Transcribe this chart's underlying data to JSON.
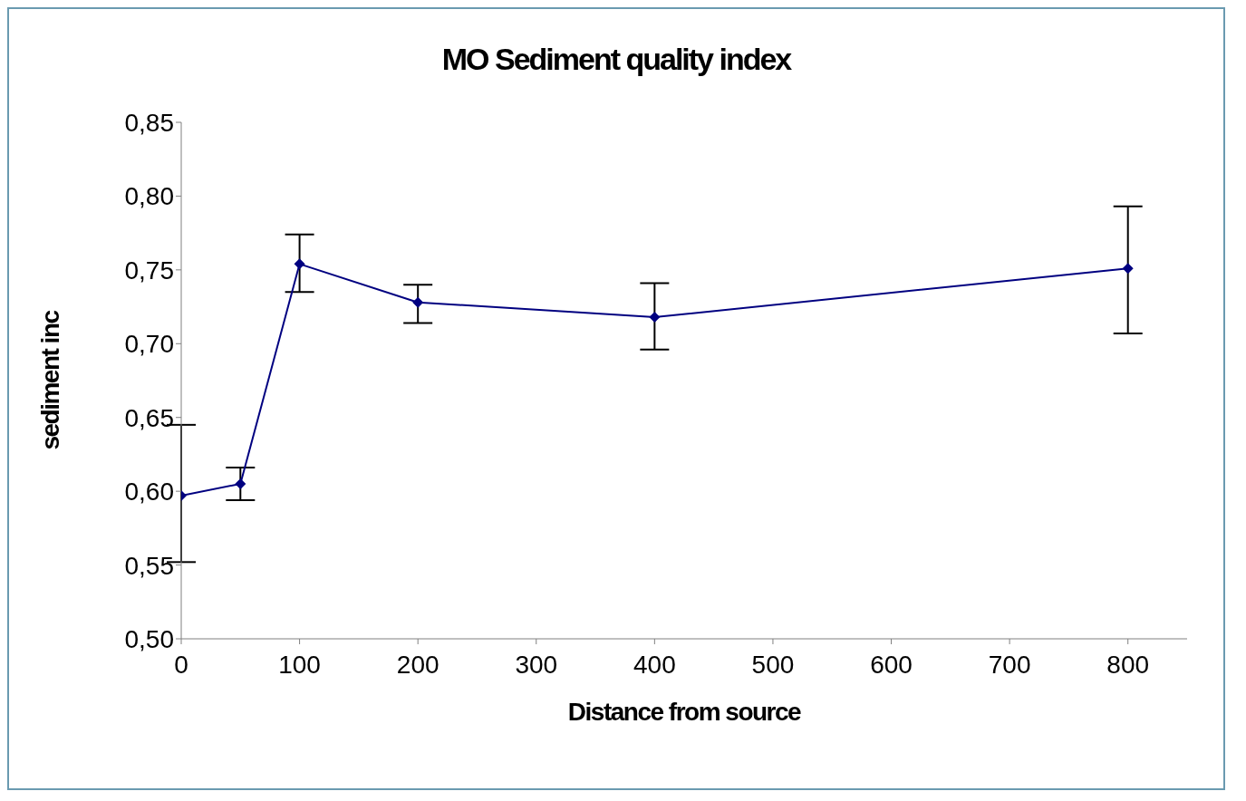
{
  "chart_data": {
    "type": "line",
    "title": "MO Sediment quality index",
    "xlabel": "Distance from source",
    "ylabel": "sediment inc",
    "x": [
      0,
      50,
      100,
      200,
      400,
      800
    ],
    "series": [
      {
        "color": "#000080",
        "values": [
          0.597,
          0.605,
          0.754,
          0.728,
          0.718,
          0.751
        ],
        "errors": [
          [
            0.552,
            0.645
          ],
          [
            0.594,
            0.616
          ],
          [
            0.735,
            0.774
          ],
          [
            0.714,
            0.74
          ],
          [
            0.696,
            0.741
          ],
          [
            0.707,
            0.793
          ]
        ]
      }
    ],
    "xlim": [
      0,
      850
    ],
    "xticks": [
      0,
      100,
      200,
      300,
      400,
      500,
      600,
      700,
      800
    ],
    "ylim": [
      0.5,
      0.85
    ],
    "yticks": [
      {
        "value": 0.5,
        "label": "0,50"
      },
      {
        "value": 0.55,
        "label": "0,55"
      },
      {
        "value": 0.6,
        "label": "0,60"
      },
      {
        "value": 0.65,
        "label": "0,65"
      },
      {
        "value": 0.7,
        "label": "0,70"
      },
      {
        "value": 0.75,
        "label": "0,75"
      },
      {
        "value": 0.8,
        "label": "0,80"
      },
      {
        "value": 0.85,
        "label": "0,85"
      }
    ],
    "grid": false,
    "legend": false,
    "marker": "diamond",
    "line_style": "solid"
  }
}
